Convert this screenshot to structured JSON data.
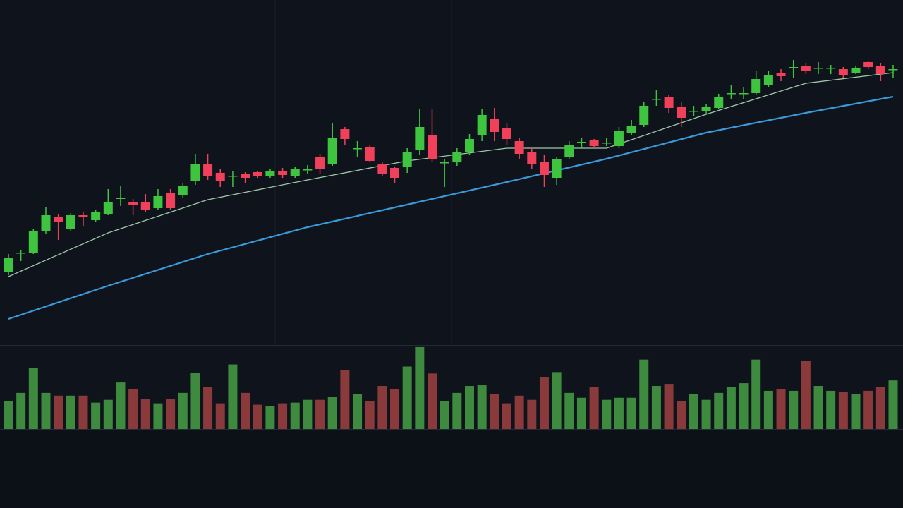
{
  "chart_data": {
    "type": "candlestick",
    "open": [
      105,
      131,
      132,
      162,
      183,
      165,
      185,
      178,
      187,
      208,
      203,
      203,
      195,
      217,
      213,
      233,
      258,
      245,
      240,
      244,
      246,
      240,
      248,
      240,
      249,
      268,
      258,
      307,
      279,
      282,
      258,
      252,
      253,
      277,
      298,
      259,
      260,
      275,
      298,
      322,
      309,
      290,
      275,
      261,
      238,
      268,
      288,
      291,
      287,
      283,
      302,
      313,
      349,
      352,
      338,
      332,
      332,
      337,
      357,
      357,
      358,
      370,
      387,
      394,
      397,
      393,
      393,
      392,
      387,
      402,
      397,
      391
    ],
    "high": [
      130,
      136,
      166,
      196,
      186,
      188,
      190,
      192,
      222,
      226,
      208,
      215,
      222,
      222,
      230,
      272,
      272,
      250,
      248,
      246,
      248,
      250,
      252,
      253,
      256,
      272,
      315,
      310,
      290,
      284,
      260,
      254,
      280,
      335,
      335,
      265,
      280,
      300,
      335,
      337,
      315,
      295,
      280,
      270,
      268,
      290,
      295,
      293,
      295,
      310,
      320,
      345,
      362,
      355,
      345,
      340,
      342,
      357,
      370,
      366,
      390,
      390,
      392,
      405,
      400,
      402,
      398,
      395,
      397,
      404,
      400,
      398
    ],
    "low": [
      100,
      120,
      130,
      158,
      150,
      162,
      170,
      176,
      185,
      198,
      185,
      190,
      192,
      192,
      210,
      228,
      235,
      225,
      225,
      230,
      238,
      238,
      238,
      238,
      244,
      244,
      255,
      285,
      268,
      260,
      240,
      230,
      245,
      270,
      260,
      225,
      255,
      270,
      290,
      290,
      285,
      265,
      250,
      225,
      228,
      265,
      280,
      280,
      283,
      280,
      298,
      310,
      340,
      330,
      310,
      325,
      328,
      335,
      350,
      350,
      355,
      367,
      375,
      380,
      385,
      385,
      385,
      380,
      385,
      392,
      375,
      380
    ],
    "close": [
      125,
      132,
      162,
      185,
      175,
      185,
      182,
      190,
      203,
      210,
      200,
      193,
      212,
      195,
      227,
      257,
      240,
      233,
      241,
      238,
      240,
      247,
      242,
      250,
      250,
      250,
      295,
      293,
      280,
      262,
      243,
      238,
      275,
      310,
      265,
      260,
      275,
      293,
      327,
      303,
      293,
      272,
      257,
      242,
      265,
      285,
      289,
      283,
      288,
      305,
      312,
      340,
      350,
      337,
      323,
      333,
      338,
      352,
      358,
      358,
      378,
      384,
      382,
      395,
      390,
      394,
      394,
      383,
      393,
      395,
      385,
      392
    ],
    "ylim": [
      0,
      490
    ],
    "colors": {
      "up": "#3fc43f",
      "down": "#f0405a"
    },
    "moving_averages": [
      {
        "color": "#9fc8a8",
        "x": [
          0,
          8,
          16,
          24,
          32,
          40,
          48,
          56,
          64,
          71
        ],
        "values": [
          98,
          160,
          207,
          235,
          262,
          280,
          280,
          328,
          372,
          387
        ]
      },
      {
        "color": "#3a9ad9",
        "x": [
          0,
          8,
          16,
          24,
          32,
          40,
          48,
          56,
          64,
          71
        ],
        "values": [
          38,
          85,
          130,
          168,
          200,
          232,
          265,
          302,
          330,
          353
        ]
      }
    ],
    "volume": {
      "values": [
        40,
        52,
        88,
        52,
        48,
        48,
        48,
        38,
        42,
        67,
        58,
        43,
        37,
        43,
        52,
        81,
        60,
        37,
        93,
        52,
        35,
        33,
        37,
        38,
        42,
        42,
        46,
        85,
        50,
        40,
        62,
        58,
        90,
        118,
        80,
        40,
        52,
        62,
        63,
        50,
        37,
        48,
        42,
        75,
        82,
        52,
        45,
        60,
        42,
        45,
        45,
        100,
        62,
        65,
        40,
        50,
        42,
        52,
        60,
        66,
        100,
        55,
        57,
        55,
        98,
        62,
        55,
        53,
        50,
        55,
        60,
        70
      ],
      "ylim": [
        0,
        120
      ],
      "colors": {
        "up": "#3e8a3e",
        "down": "#8a3a3a"
      }
    }
  }
}
